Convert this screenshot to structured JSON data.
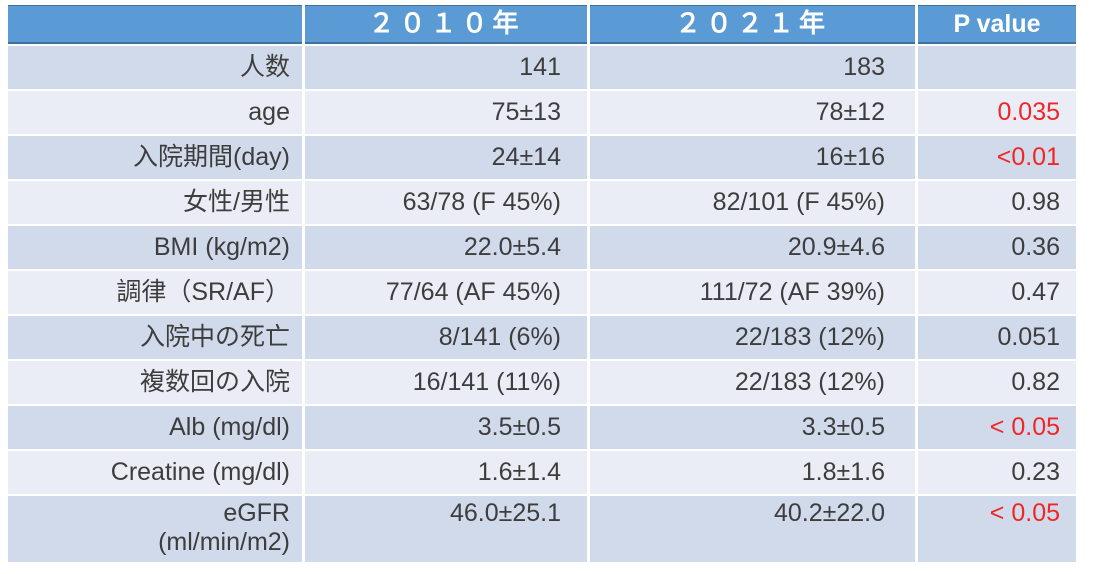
{
  "table": {
    "header": {
      "col0": "",
      "col1": "２０１０年",
      "col2": "２０２１年",
      "col3": "P value"
    },
    "rows": [
      {
        "label": "人数",
        "v2010": "141",
        "v2021": "183",
        "p": "",
        "p_red": false,
        "tall": false
      },
      {
        "label": "age",
        "v2010": "75±13",
        "v2021": "78±12",
        "p": "0.035",
        "p_red": true,
        "tall": false
      },
      {
        "label": "入院期間(day)",
        "v2010": "24±14",
        "v2021": "16±16",
        "p": "<0.01",
        "p_red": true,
        "tall": false
      },
      {
        "label": "女性/男性",
        "v2010": "63/78 (F 45%)",
        "v2021": "82/101 (F 45%)",
        "p": "0.98",
        "p_red": false,
        "tall": false
      },
      {
        "label": "BMI (kg/m2)",
        "v2010": "22.0±5.4",
        "v2021": "20.9±4.6",
        "p": "0.36",
        "p_red": false,
        "tall": false
      },
      {
        "label": "調律（SR/AF）",
        "v2010": "77/64 (AF 45%)",
        "v2021": "111/72 (AF 39%)",
        "p": "0.47",
        "p_red": false,
        "tall": false
      },
      {
        "label": "入院中の死亡",
        "v2010": "8/141 (6%)",
        "v2021": "22/183 (12%)",
        "p": "0.051",
        "p_red": false,
        "tall": false
      },
      {
        "label": "複数回の入院",
        "v2010": "16/141 (11%)",
        "v2021": "22/183 (12%)",
        "p": "0.82",
        "p_red": false,
        "tall": false
      },
      {
        "label": "Alb (mg/dl)",
        "v2010": "3.5±0.5",
        "v2021": "3.3±0.5",
        "p": "< 0.05",
        "p_red": true,
        "tall": false
      },
      {
        "label": "Creatine (mg/dl)",
        "v2010": "1.6±1.4",
        "v2021": "1.8±1.6",
        "p": "0.23",
        "p_red": false,
        "tall": false
      },
      {
        "label": "eGFR\n(ml/min/m2)",
        "v2010": "46.0±25.1",
        "v2021": "40.2±22.0",
        "p": "< 0.05",
        "p_red": true,
        "tall": true
      }
    ]
  },
  "colors": {
    "header_bg": "#5b9bd5",
    "header_border": "#41719c",
    "header_text": "#ffffff",
    "band_dark": "#d0daeb",
    "band_light": "#eaedf6",
    "text": "#3d3d3d",
    "p_red": "#f22525"
  }
}
